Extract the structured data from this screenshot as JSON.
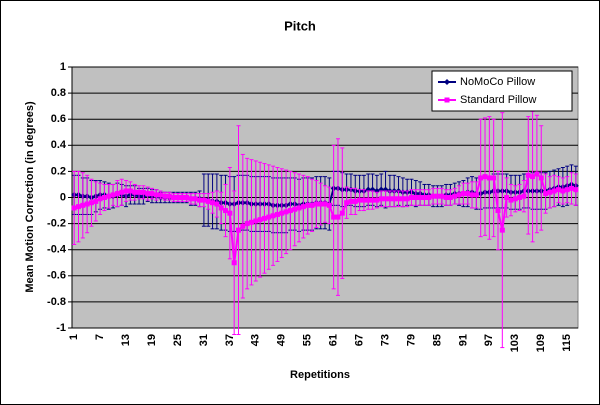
{
  "chart_data": {
    "type": "line",
    "title": "Pitch",
    "x_label": "Repetitions",
    "y_label": "Mean Motion Correction (in degrees)",
    "categories": [
      1,
      null,
      null,
      null,
      null,
      null,
      7,
      null,
      null,
      null,
      null,
      null,
      13,
      null,
      null,
      null,
      null,
      null,
      19,
      null,
      null,
      null,
      null,
      null,
      25,
      null,
      null,
      null,
      null,
      null,
      31,
      null,
      null,
      null,
      null,
      null,
      37,
      null,
      null,
      null,
      null,
      null,
      43,
      null,
      null,
      null,
      null,
      null,
      49,
      null,
      null,
      null,
      null,
      null,
      55,
      null,
      null,
      null,
      null,
      null,
      61,
      null,
      null,
      null,
      null,
      null,
      67,
      null,
      null,
      null,
      null,
      null,
      73,
      null,
      null,
      null,
      null,
      null,
      79,
      null,
      null,
      null,
      null,
      null,
      85,
      null,
      null,
      null,
      null,
      null,
      91,
      null,
      null,
      null,
      null,
      null,
      97,
      null,
      null,
      null,
      null,
      null,
      103,
      null,
      null,
      null,
      null,
      null,
      109,
      null,
      null,
      null,
      null,
      null,
      115,
      null,
      null
    ],
    "series": [
      {
        "name": "NoMoCo Pillow",
        "color": "#000080",
        "marker": "diamond",
        "values": [
          0.02,
          0.02,
          0.01,
          0.01,
          0,
          0.01,
          0.02,
          0.02,
          0.01,
          0.01,
          0.02,
          0.02,
          0.01,
          0.02,
          0.02,
          0.01,
          0.01,
          0.02,
          0.01,
          0.01,
          0,
          0,
          0,
          0,
          0,
          0,
          0,
          -0.01,
          -0.01,
          -0.01,
          -0.02,
          -0.02,
          -0.03,
          -0.03,
          -0.04,
          -0.04,
          -0.05,
          -0.05,
          -0.04,
          -0.04,
          -0.04,
          -0.05,
          -0.05,
          -0.05,
          -0.05,
          -0.05,
          -0.06,
          -0.06,
          -0.06,
          -0.06,
          -0.05,
          -0.05,
          -0.06,
          -0.05,
          -0.05,
          -0.05,
          -0.04,
          -0.04,
          -0.04,
          -0.05,
          0.07,
          0.07,
          0.06,
          0.06,
          0.06,
          0.05,
          0.05,
          0.05,
          0.06,
          0.06,
          0.05,
          0.06,
          0.06,
          0.05,
          0.05,
          0.05,
          0.04,
          0.04,
          0.04,
          0.03,
          0.03,
          0.02,
          0.02,
          0.01,
          0.01,
          0.01,
          0.02,
          0.02,
          0.03,
          0.03,
          0.03,
          0.04,
          0.04,
          0.03,
          0.03,
          0.04,
          0.04,
          0.05,
          0.05,
          0.05,
          0.05,
          0.04,
          0.04,
          0.04,
          0.05,
          0.05,
          0.05,
          0.05,
          0.05,
          0.05,
          0.06,
          0.07,
          0.08,
          0.08,
          0.09,
          0.1,
          0.09
        ],
        "errors": [
          0.15,
          0.15,
          0.14,
          0.14,
          0.13,
          0.12,
          0.11,
          0.1,
          0.1,
          0.09,
          0.09,
          0.08,
          0.08,
          0.07,
          0.07,
          0.06,
          0.06,
          0.05,
          0.05,
          0.05,
          0.04,
          0.04,
          0.04,
          0.04,
          0.04,
          0.04,
          0.04,
          0.05,
          0.05,
          0.06,
          0.2,
          0.2,
          0.21,
          0.21,
          0.21,
          0.21,
          0.21,
          0.21,
          0.21,
          0.21,
          0.21,
          0.21,
          0.21,
          0.21,
          0.21,
          0.21,
          0.21,
          0.21,
          0.21,
          0.21,
          0.2,
          0.2,
          0.2,
          0.2,
          0.2,
          0.2,
          0.2,
          0.2,
          0.2,
          0.2,
          0.13,
          0.13,
          0.13,
          0.12,
          0.12,
          0.12,
          0.12,
          0.12,
          0.12,
          0.12,
          0.12,
          0.12,
          0.14,
          0.12,
          0.12,
          0.11,
          0.11,
          0.1,
          0.1,
          0.1,
          0.09,
          0.08,
          0.08,
          0.08,
          0.08,
          0.08,
          0.08,
          0.08,
          0.08,
          0.09,
          0.1,
          0.11,
          0.12,
          0.12,
          0.12,
          0.12,
          0.12,
          0.13,
          0.13,
          0.13,
          0.13,
          0.13,
          0.13,
          0.13,
          0.13,
          0.13,
          0.14,
          0.14,
          0.14,
          0.14,
          0.14,
          0.14,
          0.14,
          0.15,
          0.15,
          0.15,
          0.15
        ]
      },
      {
        "name": "Standard Pillow",
        "color": "#ff00ff",
        "marker": "square",
        "values": [
          -0.08,
          -0.07,
          -0.06,
          -0.05,
          -0.04,
          -0.03,
          -0.01,
          0,
          0.01,
          0.02,
          0.03,
          0.04,
          0.05,
          0.05,
          0.04,
          0.04,
          0.04,
          0.03,
          0.03,
          0.02,
          0.02,
          0.01,
          0.01,
          0,
          0,
          0,
          0,
          -0.01,
          -0.01,
          -0.02,
          -0.02,
          -0.03,
          -0.04,
          -0.05,
          -0.08,
          -0.1,
          -0.12,
          -0.5,
          -0.25,
          -0.22,
          -0.2,
          -0.19,
          -0.18,
          -0.17,
          -0.16,
          -0.15,
          -0.14,
          -0.13,
          -0.12,
          -0.11,
          -0.1,
          -0.09,
          -0.08,
          -0.07,
          -0.06,
          -0.06,
          -0.05,
          -0.05,
          -0.05,
          -0.06,
          -0.15,
          -0.15,
          -0.12,
          -0.04,
          -0.03,
          -0.03,
          -0.02,
          -0.02,
          -0.02,
          -0.02,
          -0.02,
          -0.01,
          -0.01,
          -0.01,
          -0.01,
          -0.01,
          -0.01,
          -0.01,
          0,
          0,
          0,
          0,
          0,
          0.01,
          0.01,
          0.01,
          0,
          0,
          0.01,
          0.02,
          0.03,
          0.03,
          0.02,
          0.02,
          0.15,
          0.16,
          0.15,
          0.15,
          -0.1,
          -0.25,
          0,
          -0.02,
          -0.01,
          0,
          0.01,
          0.17,
          0.16,
          0.18,
          0.15,
          0.03,
          0.04,
          0.05,
          0.06,
          0.05,
          0.06,
          0.07,
          0.06
        ],
        "errors": [
          0.28,
          0.27,
          0.25,
          0.22,
          0.18,
          0.15,
          0.12,
          0.1,
          0.09,
          0.08,
          0.1,
          0.1,
          0.08,
          0.07,
          0.06,
          0.05,
          0.05,
          0.05,
          0.04,
          0.04,
          0.03,
          0.03,
          0.03,
          0.03,
          0.03,
          0.03,
          0.03,
          0.04,
          0.04,
          0.05,
          0.05,
          0.06,
          0.08,
          0.1,
          0.12,
          0.2,
          0.35,
          0.55,
          0.8,
          0.55,
          0.5,
          0.48,
          0.46,
          0.44,
          0.42,
          0.4,
          0.38,
          0.36,
          0.34,
          0.32,
          0.3,
          0.28,
          0.26,
          0.24,
          0.22,
          0.2,
          0.18,
          0.16,
          0.14,
          0.14,
          0.55,
          0.6,
          0.5,
          0.12,
          0.1,
          0.1,
          0.08,
          0.08,
          0.07,
          0.07,
          0.06,
          0.06,
          0.06,
          0.06,
          0.06,
          0.06,
          0.06,
          0.06,
          0.06,
          0.06,
          0.06,
          0.06,
          0.06,
          0.06,
          0.06,
          0.06,
          0.06,
          0.06,
          0.06,
          0.07,
          0.08,
          0.08,
          0.1,
          0.1,
          0.45,
          0.45,
          0.47,
          0.45,
          0.3,
          0.9,
          0.15,
          0.12,
          0.1,
          0.1,
          0.12,
          0.45,
          0.5,
          0.45,
          0.4,
          0.15,
          0.12,
          0.12,
          0.1,
          0.1,
          0.1,
          0.12,
          0.12
        ]
      }
    ],
    "ylim": [
      -1,
      1
    ],
    "yticks": [
      -1,
      -0.8,
      -0.6,
      -0.4,
      -0.2,
      0,
      0.2,
      0.4,
      0.6,
      0.8,
      1
    ],
    "grid": true,
    "legend": "upper right"
  }
}
